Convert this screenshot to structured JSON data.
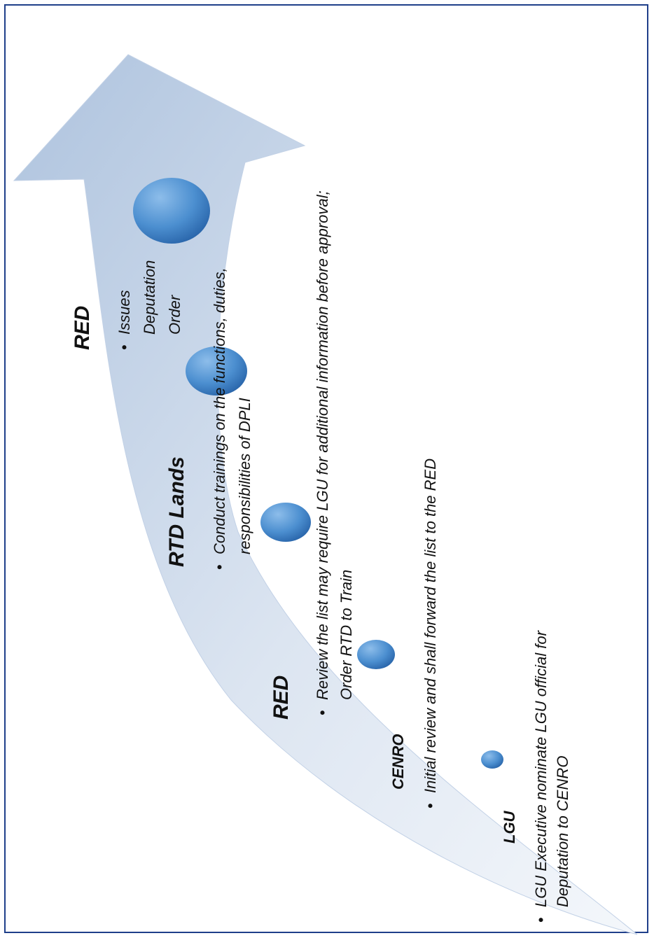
{
  "colors": {
    "border": "#1f3f8a",
    "arrow_light": "#f4f7fb",
    "arrow_mid": "#c9d6e8",
    "arrow_dark": "#9fb6d6",
    "circle_light": "#7eb2e4",
    "circle_dark": "#2f6fb6",
    "text": "#111111"
  },
  "bullet_glyph": "•",
  "stages": [
    {
      "title": "LGU",
      "description_lines": [
        "LGU Executive nominate LGU official for",
        "Deputation to CENRO"
      ]
    },
    {
      "title": "CENRO",
      "description_lines": [
        "Initial review and shall forward the list to the RED"
      ]
    },
    {
      "title": "RED",
      "description_lines": [
        "Review the list may require LGU for additional information before approval;",
        "Order RTD to Train"
      ]
    },
    {
      "title": "RTD Lands",
      "description_lines": [
        "Conduct trainings on the functions, duties,",
        "responsibilities of DPLI"
      ]
    },
    {
      "title": "RED",
      "description_lines": [
        "Issues",
        "Deputation",
        "Order"
      ]
    }
  ]
}
